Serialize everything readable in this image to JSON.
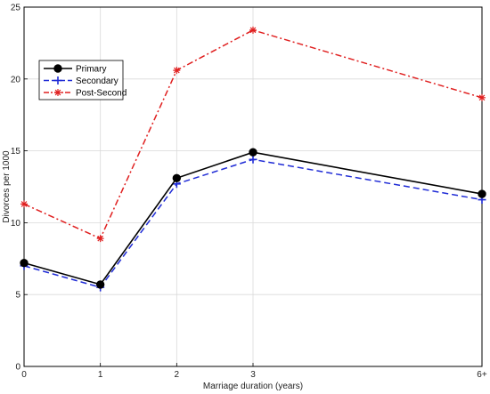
{
  "chart_data": {
    "type": "line",
    "title": "",
    "xlabel": "Marriage duration (years)",
    "ylabel": "Divorces per 1000",
    "categories": [
      "0",
      "1",
      "2",
      "3",
      "6+"
    ],
    "x": [
      0,
      1,
      2,
      3,
      6
    ],
    "xlim": [
      0,
      6
    ],
    "ylim": [
      0,
      25
    ],
    "yticks": [
      0,
      5,
      10,
      15,
      20,
      25
    ],
    "grid": true,
    "legend_position": "top-left",
    "series": [
      {
        "name": "Primary",
        "values": [
          7.2,
          5.7,
          13.1,
          14.9,
          12.0
        ],
        "color": "#000000",
        "style": "solid",
        "marker": "circle"
      },
      {
        "name": "Secondary",
        "values": [
          7.0,
          5.5,
          12.7,
          14.4,
          11.6
        ],
        "color": "#1f2bd6",
        "style": "dashed",
        "marker": "plus"
      },
      {
        "name": "Post-Second",
        "values": [
          11.3,
          8.9,
          20.6,
          23.4,
          18.7
        ],
        "color": "#e02020",
        "style": "dashdot",
        "marker": "asterisk"
      }
    ]
  }
}
